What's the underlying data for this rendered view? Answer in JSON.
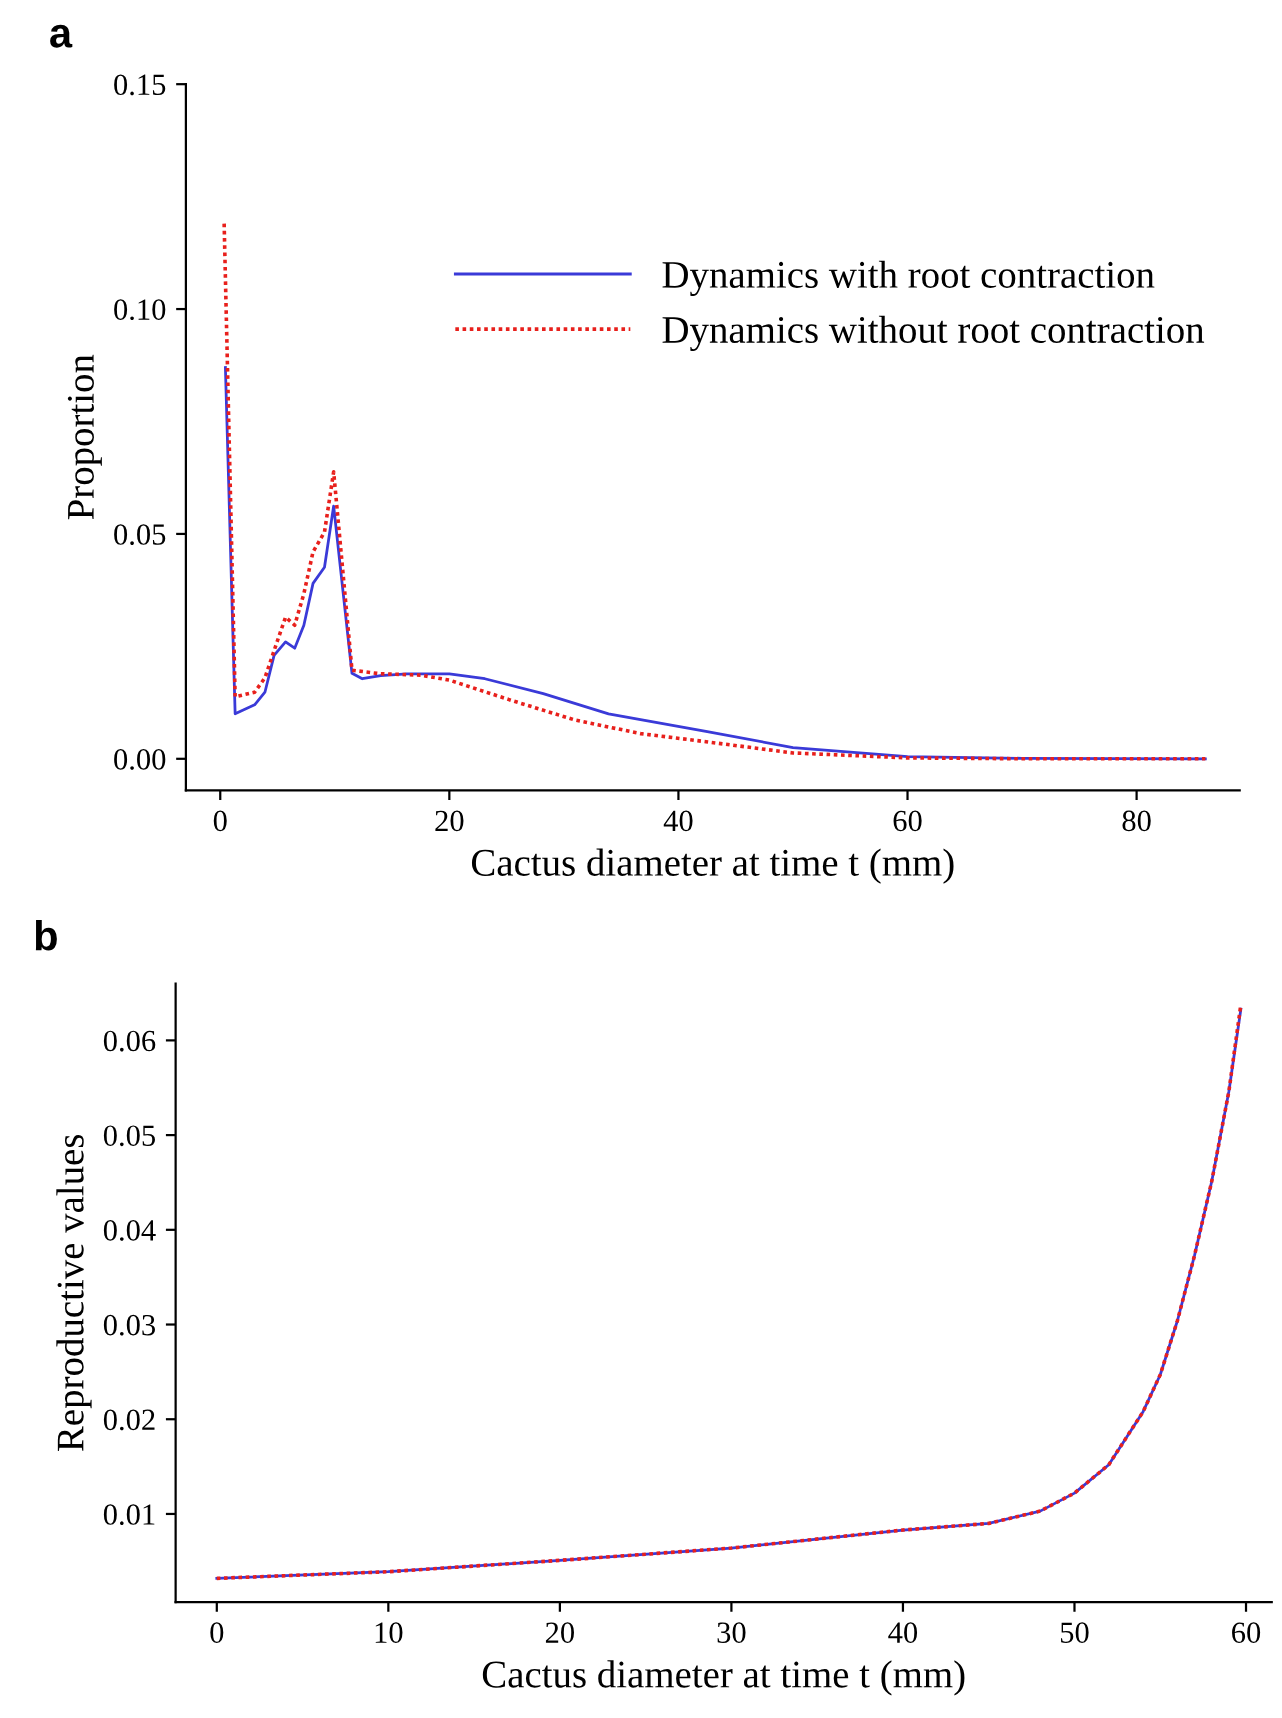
{
  "chart_data": [
    {
      "type": "line",
      "xlabel": "Cactus diameter at time t (mm)",
      "ylabel": "Proportion",
      "annotations": [
        "a"
      ],
      "xlim": [
        -3,
        89
      ],
      "ylim": [
        -0.007,
        0.15
      ],
      "xticks": [
        0,
        20,
        40,
        60,
        80
      ],
      "yticks": [
        {
          "value": 0,
          "label": "0.00"
        },
        {
          "value": 0.05,
          "label": "0.05"
        },
        {
          "value": 0.1,
          "label": "0.10"
        },
        {
          "value": 0.15,
          "label": "0.15"
        }
      ],
      "grid": false,
      "legend": "top right",
      "marker": "none",
      "series": [
        {
          "name": "Dynamics with root contraction",
          "color": "#3a3ad8",
          "line_style": "solid",
          "x": [
            0.45,
            1.3,
            3.0,
            3.9,
            4.7,
            5.7,
            6.5,
            7.3,
            8.1,
            9.1,
            9.9,
            11.5,
            12.4,
            14,
            16.3,
            20,
            23.1,
            28.2,
            33.9,
            42.4,
            50,
            60,
            70,
            86
          ],
          "values": [
            0.087,
            0.01,
            0.012,
            0.0148,
            0.023,
            0.026,
            0.0246,
            0.0297,
            0.039,
            0.0426,
            0.0562,
            0.019,
            0.0178,
            0.0185,
            0.0189,
            0.0189,
            0.0178,
            0.0145,
            0.01,
            0.0061,
            0.0025,
            0.0005,
            0.0001,
            0
          ]
        },
        {
          "name": "Dynamics without root contraction",
          "color": "#e8201c",
          "line_style": "dotted",
          "x": [
            0.34,
            1.3,
            3.0,
            3.9,
            5.0,
            5.7,
            6.5,
            7.3,
            8.1,
            9.1,
            9.9,
            11.5,
            14,
            17.5,
            20,
            25.4,
            31,
            36.7,
            42.4,
            50,
            60,
            70,
            86
          ],
          "values": [
            0.119,
            0.0138,
            0.0148,
            0.018,
            0.0263,
            0.0315,
            0.0297,
            0.0367,
            0.046,
            0.0504,
            0.0638,
            0.0197,
            0.0189,
            0.0186,
            0.0175,
            0.013,
            0.0086,
            0.0056,
            0.0038,
            0.0013,
            0.0002,
            0,
            0
          ]
        }
      ]
    },
    {
      "type": "line",
      "xlabel": "Cactus diameter at time t (mm)",
      "ylabel": "Reproductive values",
      "annotations": [
        "b"
      ],
      "xlim": [
        -2.4,
        61.5
      ],
      "ylim": [
        0.0007,
        0.066
      ],
      "xticks": [
        0,
        10,
        20,
        30,
        40,
        50,
        60
      ],
      "yticks": [
        0.01,
        0.02,
        0.03,
        0.04,
        0.05,
        0.06
      ],
      "grid": false,
      "marker": "none",
      "series": [
        {
          "color": "#3a3ad8",
          "line_style": "solid",
          "x": [
            0,
            10,
            20,
            30,
            40,
            45,
            48,
            50,
            52,
            54,
            55,
            56,
            57,
            58,
            59,
            59.7
          ],
          "values": [
            0.0032,
            0.0039,
            0.0051,
            0.0064,
            0.0083,
            0.009,
            0.0103,
            0.0122,
            0.0152,
            0.0208,
            0.0247,
            0.0304,
            0.0373,
            0.0451,
            0.0546,
            0.0633
          ]
        },
        {
          "color": "#e8201c",
          "line_style": "dotted",
          "x": [
            0,
            10,
            20,
            30,
            40,
            45,
            48,
            50,
            52,
            54,
            55,
            56,
            57,
            58,
            59,
            59.7
          ],
          "values": [
            0.0032,
            0.0039,
            0.0051,
            0.0064,
            0.0083,
            0.009,
            0.0103,
            0.0122,
            0.0152,
            0.0208,
            0.0247,
            0.0304,
            0.0373,
            0.0451,
            0.0546,
            0.0638
          ]
        }
      ]
    }
  ]
}
